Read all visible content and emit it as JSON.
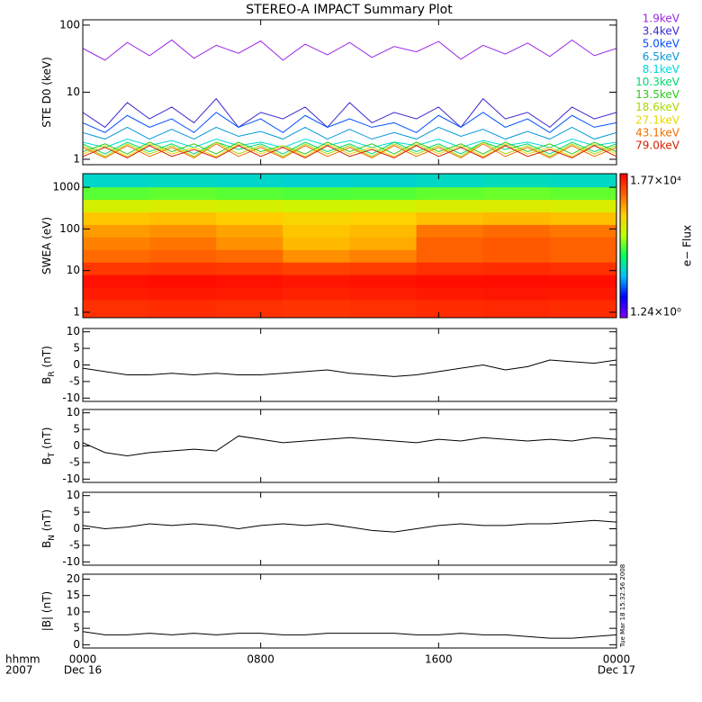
{
  "title": "STEREO-A IMPACT Summary Plot",
  "timestamp": "Tue Mar 18 15:32:56 2008",
  "x_axis": {
    "labels": [
      "hhmm",
      "2007"
    ],
    "date_start": "Dec 16",
    "date_end": "Dec 17"
  },
  "chart_data": [
    {
      "type": "line",
      "ylabel": "STE D0 (keV)",
      "ylog": true,
      "ylim": [
        0.83,
        120
      ],
      "yticks": [
        1,
        10,
        100
      ],
      "xlim": [
        0,
        24
      ],
      "xticks": [
        0,
        8,
        16,
        24
      ],
      "x": [
        0,
        1,
        2,
        3,
        4,
        5,
        6,
        7,
        8,
        9,
        10,
        11,
        12,
        13,
        14,
        15,
        16,
        17,
        18,
        19,
        20,
        21,
        22,
        23,
        24
      ],
      "series": [
        {
          "name": "1.9keV",
          "color": "#9a28e8",
          "values": [
            45,
            30,
            55,
            35,
            60,
            32,
            50,
            38,
            58,
            30,
            52,
            36,
            55,
            33,
            48,
            40,
            57,
            31,
            50,
            37,
            54,
            34,
            60,
            35,
            45
          ]
        },
        {
          "name": "3.4keV",
          "color": "#3a2ad0",
          "values": [
            5,
            3,
            7,
            4,
            6,
            3.5,
            8,
            3,
            5,
            4,
            6,
            3,
            7,
            3.5,
            5,
            4,
            6,
            3,
            8,
            4,
            5,
            3,
            6,
            4,
            5
          ]
        },
        {
          "name": "5.0keV",
          "color": "#0050ff",
          "values": [
            3.5,
            2.5,
            4.5,
            3,
            4,
            2.5,
            5,
            3,
            4,
            2.5,
            4.5,
            3,
            4,
            3,
            3.5,
            2.5,
            4.5,
            3,
            5,
            3,
            4,
            2.5,
            4.5,
            3,
            3.5
          ]
        },
        {
          "name": "6.5keV",
          "color": "#0898d8",
          "values": [
            2.5,
            2,
            3,
            2,
            2.8,
            2,
            3,
            2.2,
            2.6,
            2,
            3,
            2,
            2.8,
            2,
            2.5,
            2,
            3,
            2.2,
            2.8,
            2,
            2.6,
            2,
            3,
            2,
            2.5
          ]
        },
        {
          "name": "8.1keV",
          "color": "#00d8d8",
          "values": [
            1.8,
            1.5,
            2,
            1.6,
            1.9,
            1.5,
            2,
            1.6,
            1.8,
            1.5,
            2,
            1.6,
            1.9,
            1.5,
            1.8,
            1.6,
            2,
            1.5,
            1.9,
            1.6,
            1.8,
            1.5,
            2,
            1.6,
            1.8
          ]
        },
        {
          "name": "10.3keV",
          "color": "#00d870",
          "values": [
            1.7,
            1.2,
            1.8,
            1.3,
            1.7,
            1.2,
            1.8,
            1.4,
            1.7,
            1.2,
            1.8,
            1.3,
            1.7,
            1.2,
            1.8,
            1.3,
            1.7,
            1.2,
            1.8,
            1.4,
            1.7,
            1.2,
            1.8,
            1.3,
            1.7
          ]
        },
        {
          "name": "13.5keV",
          "color": "#30c820",
          "values": [
            1.3,
            1.7,
            1.2,
            1.8,
            1.3,
            1.7,
            1.2,
            1.8,
            1.3,
            1.6,
            1.2,
            1.8,
            1.3,
            1.7,
            1.2,
            1.8,
            1.3,
            1.7,
            1.2,
            1.8,
            1.3,
            1.7,
            1.2,
            1.8,
            1.3
          ]
        },
        {
          "name": "18.6keV",
          "color": "#a8d800",
          "values": [
            1.6,
            1.1,
            1.7,
            1.2,
            1.6,
            1.1,
            1.8,
            1.2,
            1.6,
            1.1,
            1.7,
            1.2,
            1.6,
            1.1,
            1.7,
            1.2,
            1.6,
            1.1,
            1.8,
            1.2,
            1.6,
            1.1,
            1.7,
            1.2,
            1.6
          ]
        },
        {
          "name": "27.1keV",
          "color": "#e8d800",
          "values": [
            1.2,
            1.6,
            1.1,
            1.7,
            1.2,
            1.5,
            1.1,
            1.7,
            1.2,
            1.6,
            1.1,
            1.7,
            1.2,
            1.5,
            1.1,
            1.7,
            1.2,
            1.6,
            1.1,
            1.7,
            1.2,
            1.5,
            1.1,
            1.7,
            1.2
          ]
        },
        {
          "name": "43.1keV",
          "color": "#f07000",
          "values": [
            1.5,
            1.05,
            1.6,
            1.1,
            1.5,
            1.05,
            1.7,
            1.1,
            1.5,
            1.05,
            1.6,
            1.1,
            1.5,
            1.05,
            1.6,
            1.1,
            1.5,
            1.05,
            1.7,
            1.1,
            1.5,
            1.05,
            1.6,
            1.1,
            1.5
          ]
        },
        {
          "name": "79.0keV",
          "color": "#d82000",
          "values": [
            1.1,
            1.5,
            1.05,
            1.6,
            1.1,
            1.4,
            1.05,
            1.6,
            1.1,
            1.5,
            1.05,
            1.6,
            1.1,
            1.4,
            1.05,
            1.6,
            1.1,
            1.5,
            1.05,
            1.6,
            1.1,
            1.4,
            1.05,
            1.6,
            1.1
          ]
        }
      ]
    },
    {
      "type": "heatmap",
      "ylabel": "SWEA (eV)",
      "ylog": true,
      "ylim": [
        0.74,
        2120
      ],
      "yticks": [
        1,
        10,
        100,
        1000
      ],
      "xlim": [
        0,
        24
      ],
      "xticks": [
        0,
        8,
        16,
        24
      ],
      "x": [
        0,
        3,
        6,
        9,
        12,
        15,
        18,
        21,
        24
      ],
      "y": [
        0.74,
        2,
        4,
        8,
        16,
        32,
        64,
        128,
        256,
        512,
        1024,
        2120
      ],
      "z": [
        [
          9000,
          9500,
          9000,
          8500,
          9000,
          9500,
          10000,
          9500
        ],
        [
          12000,
          12500,
          12000,
          11000,
          11500,
          12500,
          13000,
          12500
        ],
        [
          14000,
          14500,
          14000,
          13000,
          13500,
          14500,
          15000,
          14500
        ],
        [
          8000,
          8500,
          8000,
          7000,
          7500,
          9000,
          9500,
          9000
        ],
        [
          4000,
          4500,
          4000,
          2500,
          3000,
          4500,
          5000,
          4500
        ],
        [
          3000,
          3500,
          2500,
          1500,
          1800,
          4500,
          5000,
          4500
        ],
        [
          2200,
          2500,
          2000,
          1300,
          1500,
          3500,
          4000,
          3500
        ],
        [
          1300,
          1400,
          1200,
          1000,
          1100,
          1400,
          1500,
          1400
        ],
        [
          450,
          500,
          450,
          400,
          420,
          500,
          520,
          500
        ],
        [
          140,
          150,
          140,
          130,
          135,
          150,
          160,
          150
        ],
        [
          30,
          32,
          30,
          28,
          29,
          32,
          34,
          32
        ]
      ],
      "colorbar_label": "e− Flux",
      "clim": [
        1.24,
        17700
      ],
      "cticks": [
        {
          "value": 1.24,
          "label": "1.24×10⁰"
        },
        {
          "value": 17700,
          "label": "1.77×10⁴"
        }
      ],
      "colors": [
        "#8000ff",
        "#0000ff",
        "#00c0ff",
        "#00ff60",
        "#c0ff00",
        "#ffd000",
        "#ff6000",
        "#ff0000"
      ]
    },
    {
      "type": "line",
      "ylabel": "B",
      "ylabel_sub": "R",
      "ylabel_rest": " (nT)",
      "ylim": [
        -11,
        11
      ],
      "yticks": [
        -10,
        -5,
        0,
        5,
        10
      ],
      "xlim": [
        0,
        24
      ],
      "xticks": [
        0,
        8,
        16,
        24
      ],
      "x": [
        0,
        1,
        2,
        3,
        4,
        5,
        6,
        7,
        8,
        9,
        10,
        11,
        12,
        13,
        14,
        15,
        16,
        17,
        18,
        19,
        20,
        21,
        22,
        23,
        24
      ],
      "series": [
        {
          "color": "#000000",
          "values": [
            -1,
            -2,
            -3,
            -3,
            -2.5,
            -3,
            -2.5,
            -3,
            -3,
            -2.5,
            -2,
            -1.5,
            -2.5,
            -3,
            -3.5,
            -3,
            -2,
            -1,
            0,
            -1.5,
            -0.5,
            1.5,
            1,
            0.5,
            1.5
          ]
        }
      ]
    },
    {
      "type": "line",
      "ylabel": "B",
      "ylabel_sub": "T",
      "ylabel_rest": " (nT)",
      "ylim": [
        -11,
        11
      ],
      "yticks": [
        -10,
        -5,
        0,
        5,
        10
      ],
      "xlim": [
        0,
        24
      ],
      "xticks": [
        0,
        8,
        16,
        24
      ],
      "x": [
        0,
        1,
        2,
        3,
        4,
        5,
        6,
        7,
        8,
        9,
        10,
        11,
        12,
        13,
        14,
        15,
        16,
        17,
        18,
        19,
        20,
        21,
        22,
        23,
        24
      ],
      "series": [
        {
          "color": "#000000",
          "values": [
            1,
            -2,
            -3,
            -2,
            -1.5,
            -1,
            -1.5,
            3,
            2,
            1,
            1.5,
            2,
            2.5,
            2,
            1.5,
            1,
            2,
            1.5,
            2.5,
            2,
            1.5,
            2,
            1.5,
            2.5,
            2
          ]
        }
      ]
    },
    {
      "type": "line",
      "ylabel": "B",
      "ylabel_sub": "N",
      "ylabel_rest": " (nT)",
      "ylim": [
        -11,
        11
      ],
      "yticks": [
        -10,
        -5,
        0,
        5,
        10
      ],
      "xlim": [
        0,
        24
      ],
      "xticks": [
        0,
        8,
        16,
        24
      ],
      "x": [
        0,
        1,
        2,
        3,
        4,
        5,
        6,
        7,
        8,
        9,
        10,
        11,
        12,
        13,
        14,
        15,
        16,
        17,
        18,
        19,
        20,
        21,
        22,
        23,
        24
      ],
      "series": [
        {
          "color": "#000000",
          "values": [
            1,
            0,
            0.5,
            1.5,
            1,
            1.5,
            1,
            0,
            1,
            1.5,
            1,
            1.5,
            0.5,
            -0.5,
            -1,
            0,
            1,
            1.5,
            1,
            1,
            1.5,
            1.5,
            2,
            2.5,
            2
          ]
        }
      ]
    },
    {
      "type": "line",
      "ylabel": "|B| (nT)",
      "ylim": [
        -1,
        21.5
      ],
      "yticks": [
        0,
        5,
        10,
        15,
        20
      ],
      "xlim": [
        0,
        24
      ],
      "xticks": [
        {
          "value": 0,
          "label": "0000"
        },
        {
          "value": 8,
          "label": "0800"
        },
        {
          "value": 16,
          "label": "1600"
        },
        {
          "value": 24,
          "label": "0000"
        }
      ],
      "x": [
        0,
        1,
        2,
        3,
        4,
        5,
        6,
        7,
        8,
        9,
        10,
        11,
        12,
        13,
        14,
        15,
        16,
        17,
        18,
        19,
        20,
        21,
        22,
        23,
        24
      ],
      "series": [
        {
          "color": "#000000",
          "values": [
            4,
            3,
            3,
            3.5,
            3,
            3.5,
            3,
            3.5,
            3.5,
            3,
            3,
            3.5,
            3.5,
            3.5,
            3.5,
            3,
            3,
            3.5,
            3,
            3,
            2.5,
            2,
            2,
            2.5,
            3
          ]
        }
      ]
    }
  ]
}
